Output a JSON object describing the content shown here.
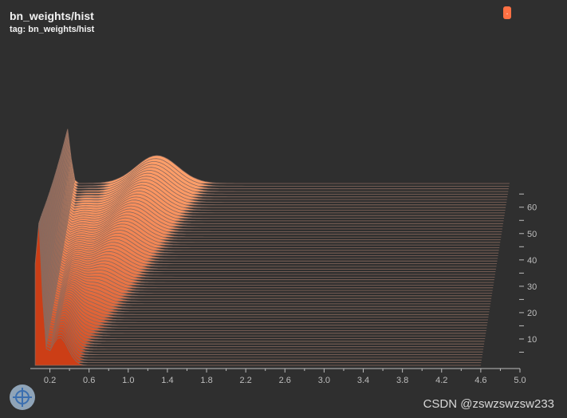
{
  "card": {
    "title": "bn_weights/hist",
    "tag": "tag: bn_weights/hist",
    "badge_label": "."
  },
  "watermark": "CSDN @zswzswzsw233",
  "fab_icon": "target-icon",
  "colors": {
    "background": "#2f2f2f",
    "front": "#cc3e16",
    "back": "#ff9f6a",
    "edge": "#8a6a5e",
    "badge": "#ff7043"
  },
  "chart_data": {
    "type": "histogram-ridgeline",
    "title": "bn_weights/hist",
    "xlim": [
      0,
      5
    ],
    "x_ticks": [
      "0.2",
      "0.6",
      "1.0",
      "1.4",
      "1.8",
      "2.2",
      "2.6",
      "3.0",
      "3.4",
      "3.8",
      "4.2",
      "4.6",
      "5.0"
    ],
    "y_ticks": [
      "10",
      "20",
      "30",
      "40",
      "50",
      "60"
    ],
    "y_range": [
      0,
      69
    ],
    "steps": 69,
    "grid": false
  }
}
